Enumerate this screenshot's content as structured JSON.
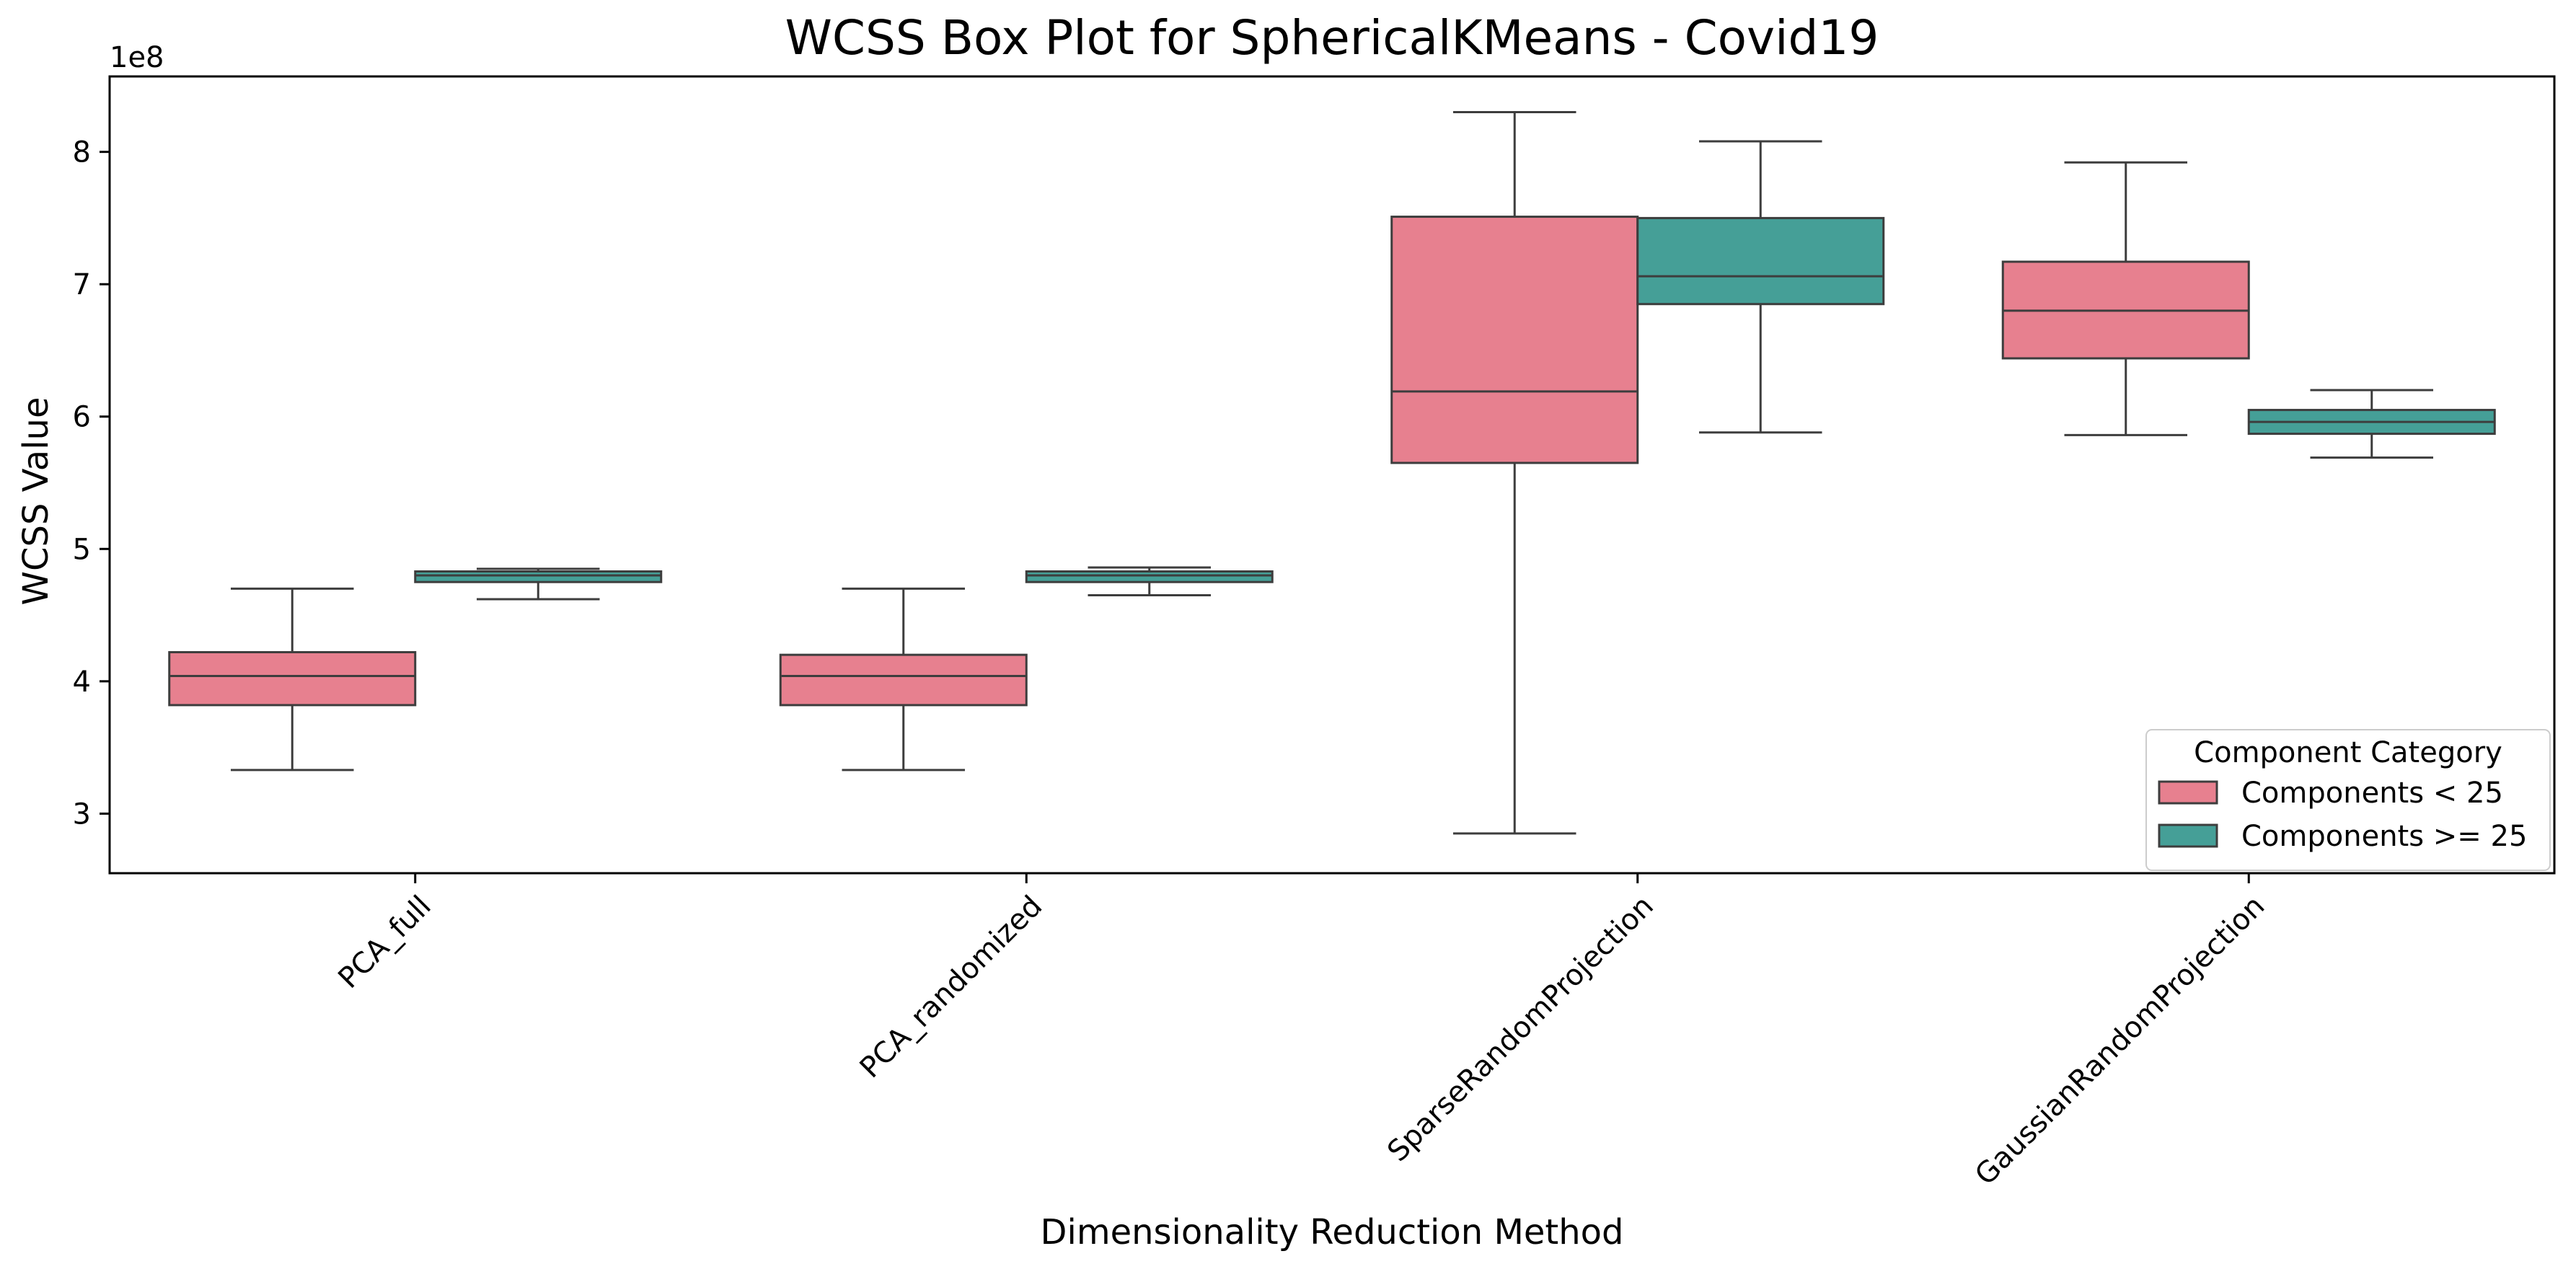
{
  "chart_data": {
    "type": "box",
    "title": "WCSS Box Plot for SphericalKMeans - Covid19",
    "xlabel": "Dimensionality Reduction Method",
    "ylabel": "WCSS Value",
    "y_exponent_label": "1e8",
    "y_scale_factor": 100000000,
    "ylim": [
      2.55,
      8.57
    ],
    "yticks": [
      3,
      4,
      5,
      6,
      7,
      8
    ],
    "categories": [
      "PCA_full",
      "PCA_randomized",
      "SparseRandomProjection",
      "GaussianRandomProjection"
    ],
    "legend": {
      "title": "Component Category",
      "placement": "lower-right"
    },
    "series": [
      {
        "name": "Components < 25",
        "color": "#e7808f",
        "boxes": [
          {
            "min": 3.33,
            "q1": 3.82,
            "median": 4.04,
            "q3": 4.22,
            "max": 4.7
          },
          {
            "min": 3.33,
            "q1": 3.82,
            "median": 4.04,
            "q3": 4.2,
            "max": 4.7
          },
          {
            "min": 2.85,
            "q1": 5.65,
            "median": 6.19,
            "q3": 7.51,
            "max": 8.3
          },
          {
            "min": 5.86,
            "q1": 6.44,
            "median": 6.8,
            "q3": 7.17,
            "max": 7.92
          }
        ]
      },
      {
        "name": "Components >= 25",
        "color": "#459f97",
        "boxes": [
          {
            "min": 4.62,
            "q1": 4.75,
            "median": 4.8,
            "q3": 4.83,
            "max": 4.85
          },
          {
            "min": 4.65,
            "q1": 4.75,
            "median": 4.8,
            "q3": 4.83,
            "max": 4.86
          },
          {
            "min": 5.88,
            "q1": 6.85,
            "median": 7.06,
            "q3": 7.5,
            "max": 8.08
          },
          {
            "min": 5.69,
            "q1": 5.87,
            "median": 5.96,
            "q3": 6.05,
            "max": 6.2
          }
        ]
      }
    ]
  }
}
